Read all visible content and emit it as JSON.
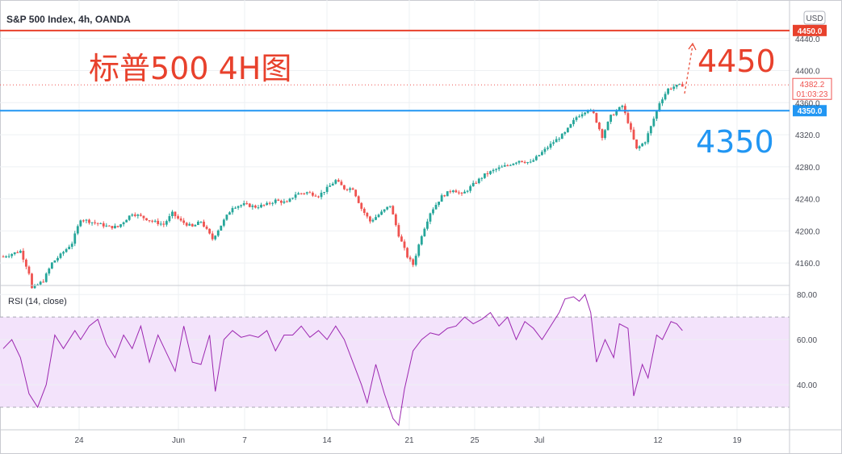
{
  "header": {
    "symbol_title": "S&P 500 Index, 4h, OANDA",
    "currency": "USD"
  },
  "annotations": {
    "main_label": "标普500 4H图",
    "upper_level_label": "4450",
    "lower_level_label": "4350"
  },
  "colors": {
    "up": "#26a69a",
    "down": "#ef5350",
    "resistance": "#e8412c",
    "support": "#2196f3",
    "rsi_line": "#9c27b0",
    "rsi_band": "#f3e3fb",
    "grid": "#eef0f3",
    "axis_text": "#4a4d57"
  },
  "chart_data": [
    {
      "type": "candlestick",
      "title": "S&P 500 Index, 4h, OANDA",
      "y_axis_ticks": [
        "4160.0",
        "4200.0",
        "4240.0",
        "4280.0",
        "4320.0",
        "4360.0",
        "4400.0",
        "4440.0"
      ],
      "ylim": [
        4132,
        4482
      ],
      "x_axis_ticks": [
        "24",
        "Jun",
        "7",
        "14",
        "21",
        "25",
        "Jul",
        "12",
        "19"
      ],
      "levels": [
        {
          "label": "4450.0",
          "value": 4450.0,
          "kind": "resistance"
        },
        {
          "label": "4350.0",
          "value": 4350.0,
          "kind": "support"
        }
      ],
      "last_price": {
        "value": 4382.2,
        "label": "4382.2",
        "countdown": "01:03:23"
      },
      "close_path": [
        [
          0,
          4168
        ],
        [
          6,
          4175
        ],
        [
          9,
          4148
        ],
        [
          10,
          4128
        ],
        [
          14,
          4138
        ],
        [
          17,
          4160
        ],
        [
          20,
          4170
        ],
        [
          24,
          4185
        ],
        [
          27,
          4215
        ],
        [
          30,
          4212
        ],
        [
          34,
          4208
        ],
        [
          37,
          4205
        ],
        [
          40,
          4205
        ],
        [
          45,
          4222
        ],
        [
          48,
          4218
        ],
        [
          52,
          4212
        ],
        [
          56,
          4208
        ],
        [
          59,
          4222
        ],
        [
          62,
          4212
        ],
        [
          66,
          4205
        ],
        [
          69,
          4212
        ],
        [
          73,
          4190
        ],
        [
          77,
          4213
        ],
        [
          80,
          4230
        ],
        [
          84,
          4233
        ],
        [
          88,
          4230
        ],
        [
          92,
          4233
        ],
        [
          95,
          4238
        ],
        [
          99,
          4235
        ],
        [
          102,
          4246
        ],
        [
          106,
          4248
        ],
        [
          110,
          4244
        ],
        [
          113,
          4253
        ],
        [
          116,
          4263
        ],
        [
          119,
          4253
        ],
        [
          122,
          4253
        ],
        [
          125,
          4228
        ],
        [
          128,
          4212
        ],
        [
          132,
          4223
        ],
        [
          135,
          4232
        ],
        [
          138,
          4195
        ],
        [
          141,
          4168
        ],
        [
          143,
          4158
        ],
        [
          146,
          4195
        ],
        [
          149,
          4223
        ],
        [
          153,
          4243
        ],
        [
          157,
          4252
        ],
        [
          160,
          4245
        ],
        [
          164,
          4258
        ],
        [
          168,
          4270
        ],
        [
          172,
          4277
        ],
        [
          176,
          4282
        ],
        [
          180,
          4288
        ],
        [
          184,
          4285
        ],
        [
          188,
          4298
        ],
        [
          192,
          4311
        ],
        [
          196,
          4322
        ],
        [
          200,
          4342
        ],
        [
          204,
          4352
        ],
        [
          206,
          4346
        ],
        [
          209,
          4318
        ],
        [
          212,
          4343
        ],
        [
          216,
          4356
        ],
        [
          218,
          4336
        ],
        [
          221,
          4302
        ],
        [
          224,
          4312
        ],
        [
          226,
          4330
        ],
        [
          229,
          4360
        ],
        [
          232,
          4377
        ],
        [
          234,
          4380
        ],
        [
          237,
          4382
        ]
      ]
    },
    {
      "type": "line",
      "title": "RSI (14, close)",
      "y_axis_ticks": [
        "40.00",
        "60.00",
        "80.00"
      ],
      "ylim": [
        20,
        84
      ],
      "bands": [
        70,
        30
      ],
      "x_axis_ticks": [
        "24",
        "Jun",
        "7",
        "14",
        "21",
        "25",
        "Jul",
        "12",
        "19"
      ],
      "series": [
        {
          "name": "RSI",
          "points": [
            [
              0,
              56
            ],
            [
              3,
              60
            ],
            [
              6,
              52
            ],
            [
              9,
              36
            ],
            [
              12,
              30
            ],
            [
              15,
              40
            ],
            [
              18,
              62
            ],
            [
              21,
              56
            ],
            [
              25,
              64
            ],
            [
              27,
              60
            ],
            [
              30,
              66
            ],
            [
              33,
              69
            ],
            [
              36,
              58
            ],
            [
              39,
              52
            ],
            [
              42,
              62
            ],
            [
              45,
              56
            ],
            [
              48,
              66
            ],
            [
              51,
              50
            ],
            [
              54,
              62
            ],
            [
              57,
              54
            ],
            [
              60,
              46
            ],
            [
              63,
              66
            ],
            [
              66,
              50
            ],
            [
              69,
              49
            ],
            [
              72,
              62
            ],
            [
              74,
              37
            ],
            [
              77,
              60
            ],
            [
              80,
              64
            ],
            [
              83,
              61
            ],
            [
              86,
              62
            ],
            [
              89,
              61
            ],
            [
              92,
              64
            ],
            [
              95,
              55
            ],
            [
              98,
              62
            ],
            [
              101,
              62
            ],
            [
              104,
              66
            ],
            [
              107,
              61
            ],
            [
              110,
              64
            ],
            [
              113,
              60
            ],
            [
              116,
              66
            ],
            [
              119,
              60
            ],
            [
              122,
              50
            ],
            [
              125,
              40
            ],
            [
              127,
              32
            ],
            [
              130,
              49
            ],
            [
              133,
              36
            ],
            [
              136,
              25
            ],
            [
              138,
              22
            ],
            [
              140,
              38
            ],
            [
              143,
              55
            ],
            [
              146,
              60
            ],
            [
              149,
              63
            ],
            [
              152,
              62
            ],
            [
              155,
              65
            ],
            [
              158,
              66
            ],
            [
              161,
              70
            ],
            [
              164,
              67
            ],
            [
              167,
              69
            ],
            [
              170,
              72
            ],
            [
              173,
              66
            ],
            [
              176,
              70
            ],
            [
              179,
              60
            ],
            [
              182,
              68
            ],
            [
              185,
              65
            ],
            [
              188,
              60
            ],
            [
              191,
              66
            ],
            [
              194,
              72
            ],
            [
              196,
              78
            ],
            [
              199,
              79
            ],
            [
              201,
              77
            ],
            [
              203,
              80
            ],
            [
              205,
              72
            ],
            [
              207,
              50
            ],
            [
              210,
              60
            ],
            [
              213,
              52
            ],
            [
              215,
              67
            ],
            [
              218,
              65
            ],
            [
              220,
              35
            ],
            [
              223,
              49
            ],
            [
              225,
              43
            ],
            [
              228,
              62
            ],
            [
              230,
              60
            ],
            [
              233,
              68
            ],
            [
              235,
              67
            ],
            [
              237,
              64
            ]
          ]
        }
      ]
    }
  ]
}
